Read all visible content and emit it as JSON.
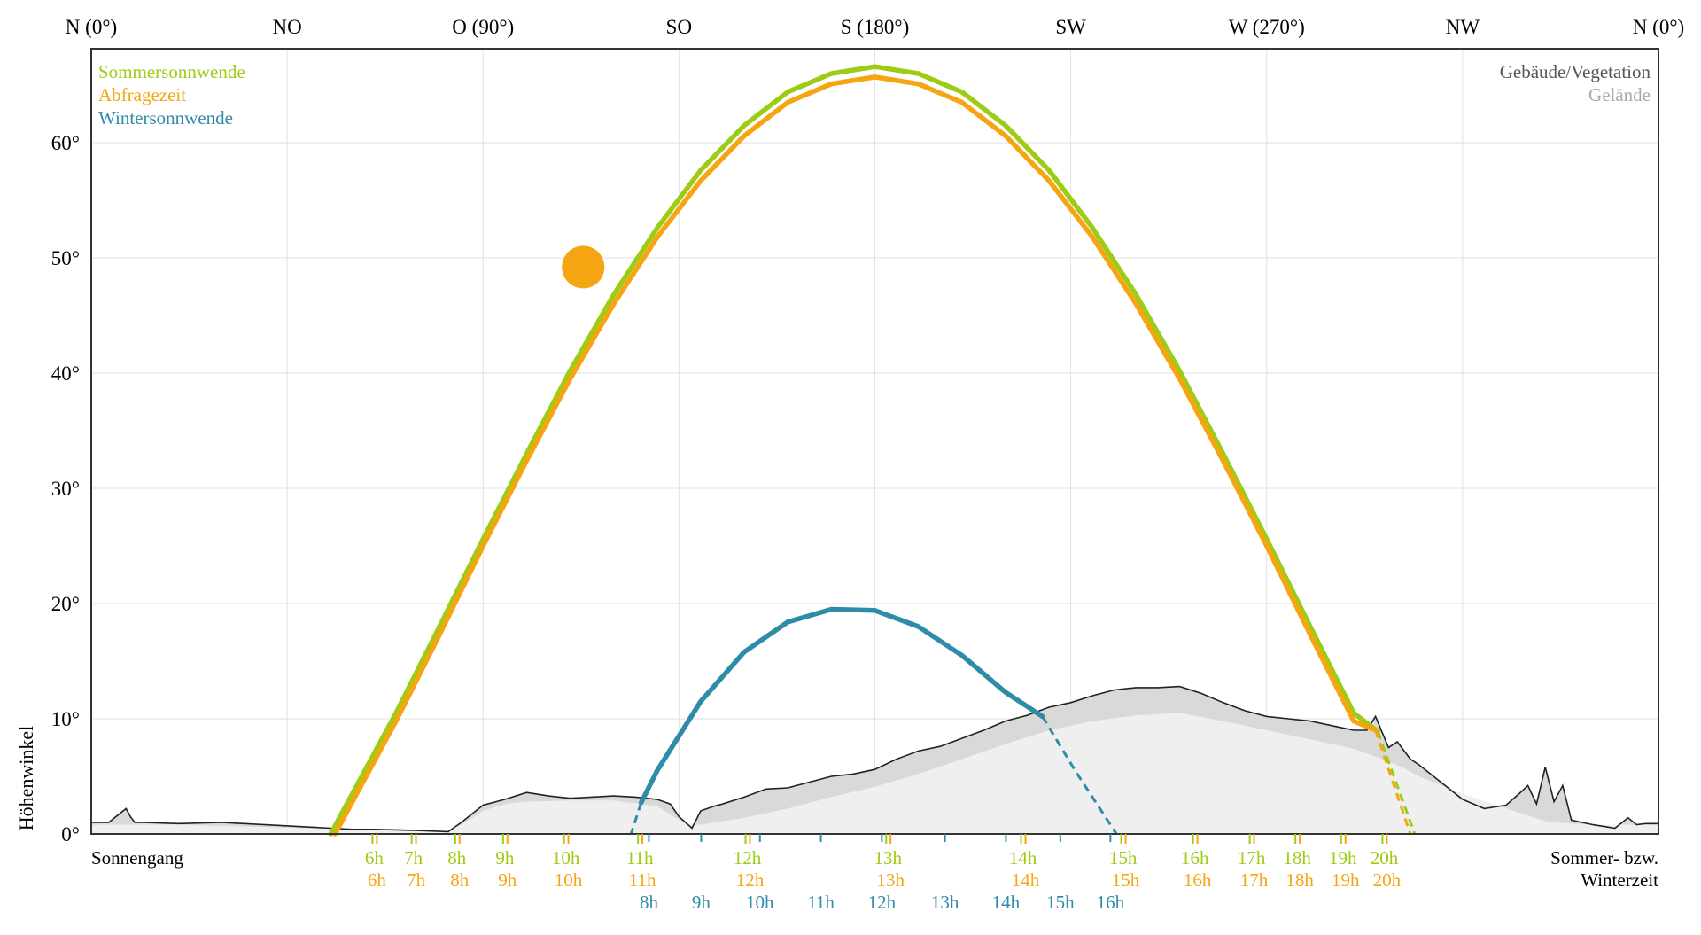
{
  "chart_data": {
    "type": "line",
    "title": "",
    "ylabel": "Höhenwinkel",
    "xlim": [
      0,
      360
    ],
    "ylim": [
      0,
      66
    ],
    "grid": true,
    "x_ticks": [
      {
        "value": 0,
        "label": "N (0°)"
      },
      {
        "value": 45,
        "label": "NO"
      },
      {
        "value": 90,
        "label": "O (90°)"
      },
      {
        "value": 135,
        "label": "SO"
      },
      {
        "value": 180,
        "label": "S (180°)"
      },
      {
        "value": 225,
        "label": "SW"
      },
      {
        "value": 270,
        "label": "W (270°)"
      },
      {
        "value": 315,
        "label": "NW"
      },
      {
        "value": 360,
        "label": "N (0°)"
      }
    ],
    "y_ticks": [
      {
        "value": 0,
        "label": "0°"
      },
      {
        "value": 10,
        "label": "10°"
      },
      {
        "value": 20,
        "label": "20°"
      },
      {
        "value": 30,
        "label": "30°"
      },
      {
        "value": 40,
        "label": "40°"
      },
      {
        "value": 50,
        "label": "50°"
      },
      {
        "value": 60,
        "label": "60°"
      }
    ],
    "legend_left": [
      {
        "name": "Sommersonnwende",
        "color": "#9ccc13"
      },
      {
        "name": "Abfragezeit",
        "color": "#f6a512"
      },
      {
        "name": "Wintersonnwende",
        "color": "#2e8ca8"
      }
    ],
    "legend_right": [
      {
        "name": "Gebäude/Vegetation",
        "color": "#555555"
      },
      {
        "name": "Gelände",
        "color": "#aaaaaa"
      }
    ],
    "series": [
      {
        "name": "Sommersonnwende",
        "color": "#9ccc13",
        "x": [
          55.0,
          60,
          70,
          80,
          90,
          100,
          110,
          120,
          130,
          140,
          150,
          160,
          170,
          180,
          190,
          200,
          210,
          220,
          230,
          240,
          250,
          260,
          270,
          280,
          290,
          295.5
        ],
        "y": [
          0,
          3.5,
          10.5,
          18,
          25.6,
          33,
          40.2,
          46.8,
          52.6,
          57.6,
          61.5,
          64.4,
          66.0,
          66.6,
          66.0,
          64.4,
          61.5,
          57.6,
          52.6,
          46.8,
          40.2,
          33,
          25.6,
          18,
          10.5,
          8.9
        ],
        "hidden_x": [
          295.5,
          304
        ],
        "hidden_y": [
          8.9,
          0
        ]
      },
      {
        "name": "Abfragezeit",
        "color": "#f6a512",
        "x": [
          56.0,
          60,
          70,
          80,
          90,
          100,
          110,
          120,
          130,
          140,
          150,
          160,
          170,
          180,
          190,
          200,
          210,
          220,
          230,
          240,
          250,
          260,
          270,
          280,
          290,
          295
        ],
        "y": [
          0,
          2.8,
          9.8,
          17.3,
          25.0,
          32.4,
          39.5,
          46.0,
          51.8,
          56.7,
          60.6,
          63.5,
          65.1,
          65.7,
          65.1,
          63.5,
          60.6,
          56.7,
          51.8,
          46.0,
          39.5,
          32.4,
          25.0,
          17.3,
          9.8,
          9.0
        ],
        "hidden_x": [
          295,
          303
        ],
        "hidden_y": [
          9.0,
          0
        ]
      },
      {
        "name": "Wintersonnwende",
        "color": "#2e8ca8",
        "x": [
          126.3,
          130,
          140,
          150,
          160,
          170,
          180,
          190,
          200,
          210,
          218.5
        ],
        "y": [
          2.7,
          5.5,
          11.5,
          15.8,
          18.4,
          19.5,
          19.4,
          18.0,
          15.5,
          12.3,
          10.2
        ],
        "hidden_x": [
          126.3,
          124,
          218.5,
          226,
          235.5
        ],
        "hidden_y": [
          2.7,
          0,
          10.2,
          5.5,
          0
        ]
      }
    ],
    "sun_marker": {
      "azimuth": 113,
      "altitude": 49.2,
      "color": "#f6a512"
    },
    "horizon_buildings": {
      "x": [
        0,
        4,
        8,
        9,
        10,
        12,
        20,
        30,
        40,
        50,
        55,
        60,
        65,
        75,
        82,
        85,
        90,
        95,
        100,
        105,
        110,
        115,
        120,
        125,
        130,
        133,
        135,
        138,
        140,
        143,
        145,
        150,
        155,
        160,
        165,
        170,
        175,
        180,
        185,
        190,
        195,
        200,
        205,
        210,
        215,
        220,
        225,
        230,
        235,
        240,
        245,
        250,
        255,
        260,
        265,
        270,
        275,
        280,
        285,
        290,
        293,
        295,
        298,
        300,
        303,
        305,
        310,
        315,
        320,
        325,
        328,
        330,
        332,
        334,
        336,
        338,
        340,
        345,
        350,
        353,
        355,
        357,
        360
      ],
      "y": [
        1.0,
        1.0,
        2.2,
        1.5,
        1.0,
        1.0,
        0.9,
        1.0,
        0.8,
        0.6,
        0.5,
        0.4,
        0.4,
        0.3,
        0.2,
        1.0,
        2.5,
        3.0,
        3.6,
        3.3,
        3.1,
        3.2,
        3.3,
        3.2,
        3.0,
        2.6,
        1.5,
        0.5,
        2.0,
        2.4,
        2.6,
        3.2,
        3.9,
        4.0,
        4.5,
        5.0,
        5.2,
        5.6,
        6.5,
        7.2,
        7.6,
        8.3,
        9.0,
        9.8,
        10.3,
        11.0,
        11.4,
        12.0,
        12.5,
        12.7,
        12.7,
        12.8,
        12.2,
        11.4,
        10.7,
        10.2,
        10.0,
        9.8,
        9.4,
        9.0,
        9.0,
        10.2,
        7.5,
        8.0,
        6.5,
        6.0,
        4.5,
        3.0,
        2.2,
        2.5,
        3.5,
        4.2,
        2.6,
        5.8,
        2.8,
        4.2,
        1.2,
        0.8,
        0.5,
        1.4,
        0.8,
        0.9,
        0.9
      ]
    },
    "terrain": {
      "x": [
        0,
        10,
        20,
        40,
        60,
        82,
        85,
        90,
        95,
        100,
        110,
        120,
        130,
        136,
        140,
        150,
        160,
        170,
        180,
        190,
        200,
        210,
        220,
        230,
        240,
        250,
        260,
        270,
        280,
        290,
        300,
        305,
        315,
        325,
        335,
        345,
        355,
        360
      ],
      "y": [
        0.8,
        0.8,
        0.8,
        0.6,
        0.4,
        0.2,
        0.8,
        2.0,
        2.6,
        2.8,
        2.9,
        2.9,
        2.4,
        1.0,
        0.8,
        1.4,
        2.2,
        3.2,
        4.1,
        5.2,
        6.5,
        7.8,
        9.0,
        9.8,
        10.3,
        10.5,
        9.8,
        9.0,
        8.2,
        7.4,
        6.0,
        5.0,
        3.5,
        2.2,
        1.0,
        0.8,
        0.8,
        0.8
      ]
    },
    "time_axis": {
      "left_label": "Sonnengang",
      "right_label_line1": "Sommer- bzw.",
      "right_label_line2": "Winterzeit",
      "summer_ticks": [
        {
          "azimuth": 64.6,
          "label": "6h"
        },
        {
          "azimuth": 73.6,
          "label": "7h"
        },
        {
          "azimuth": 83.6,
          "label": "8h"
        },
        {
          "azimuth": 94.6,
          "label": "9h"
        },
        {
          "azimuth": 108.6,
          "label": "10h"
        },
        {
          "azimuth": 125.6,
          "label": "11h"
        },
        {
          "azimuth": 150.3,
          "label": "12h"
        },
        {
          "azimuth": 182.6,
          "label": "13h"
        },
        {
          "azimuth": 213.6,
          "label": "14h"
        },
        {
          "azimuth": 236.6,
          "label": "15h"
        },
        {
          "azimuth": 253.1,
          "label": "16h"
        },
        {
          "azimuth": 266.1,
          "label": "17h"
        },
        {
          "azimuth": 276.6,
          "label": "18h"
        },
        {
          "azimuth": 287.1,
          "label": "19h"
        },
        {
          "azimuth": 296.6,
          "label": "20h"
        }
      ],
      "query_ticks": [
        {
          "azimuth": 65.6,
          "label": "6h"
        },
        {
          "azimuth": 74.6,
          "label": "7h"
        },
        {
          "azimuth": 84.6,
          "label": "8h"
        },
        {
          "azimuth": 95.6,
          "label": "9h"
        },
        {
          "azimuth": 109.6,
          "label": "10h"
        },
        {
          "azimuth": 126.6,
          "label": "11h"
        },
        {
          "azimuth": 151.3,
          "label": "12h"
        },
        {
          "azimuth": 183.6,
          "label": "13h"
        },
        {
          "azimuth": 214.6,
          "label": "14h"
        },
        {
          "azimuth": 237.6,
          "label": "15h"
        },
        {
          "azimuth": 254.1,
          "label": "16h"
        },
        {
          "azimuth": 267.1,
          "label": "17h"
        },
        {
          "azimuth": 277.6,
          "label": "18h"
        },
        {
          "azimuth": 288.1,
          "label": "19h"
        },
        {
          "azimuth": 297.6,
          "label": "20h"
        }
      ],
      "winter_ticks": [
        {
          "azimuth": 128.1,
          "label": "8h"
        },
        {
          "azimuth": 140.1,
          "label": "9h"
        },
        {
          "azimuth": 153.6,
          "label": "10h"
        },
        {
          "azimuth": 167.6,
          "label": "11h"
        },
        {
          "azimuth": 181.6,
          "label": "12h"
        },
        {
          "azimuth": 196.1,
          "label": "13h"
        },
        {
          "azimuth": 210.1,
          "label": "14h"
        },
        {
          "azimuth": 222.6,
          "label": "15h"
        },
        {
          "azimuth": 234.1,
          "label": "16h"
        }
      ]
    }
  }
}
